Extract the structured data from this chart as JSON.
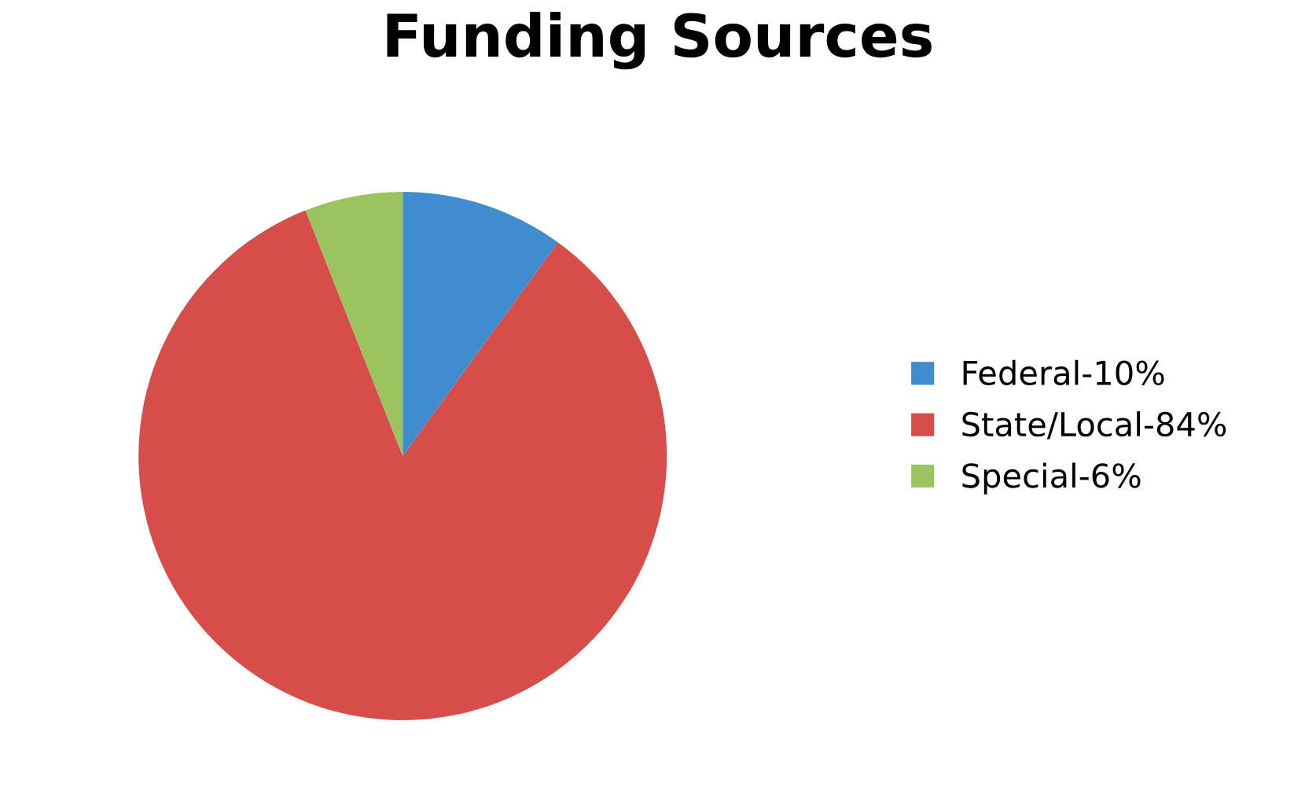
{
  "chart_data": {
    "type": "pie",
    "title": "Funding Sources",
    "categories": [
      "Federal-10%",
      "State/Local-84%",
      "Special-6%"
    ],
    "values": [
      10,
      84,
      6
    ],
    "colors": [
      "#3f8ccf",
      "#d64d4a",
      "#9cc45e"
    ],
    "legend": "right"
  }
}
